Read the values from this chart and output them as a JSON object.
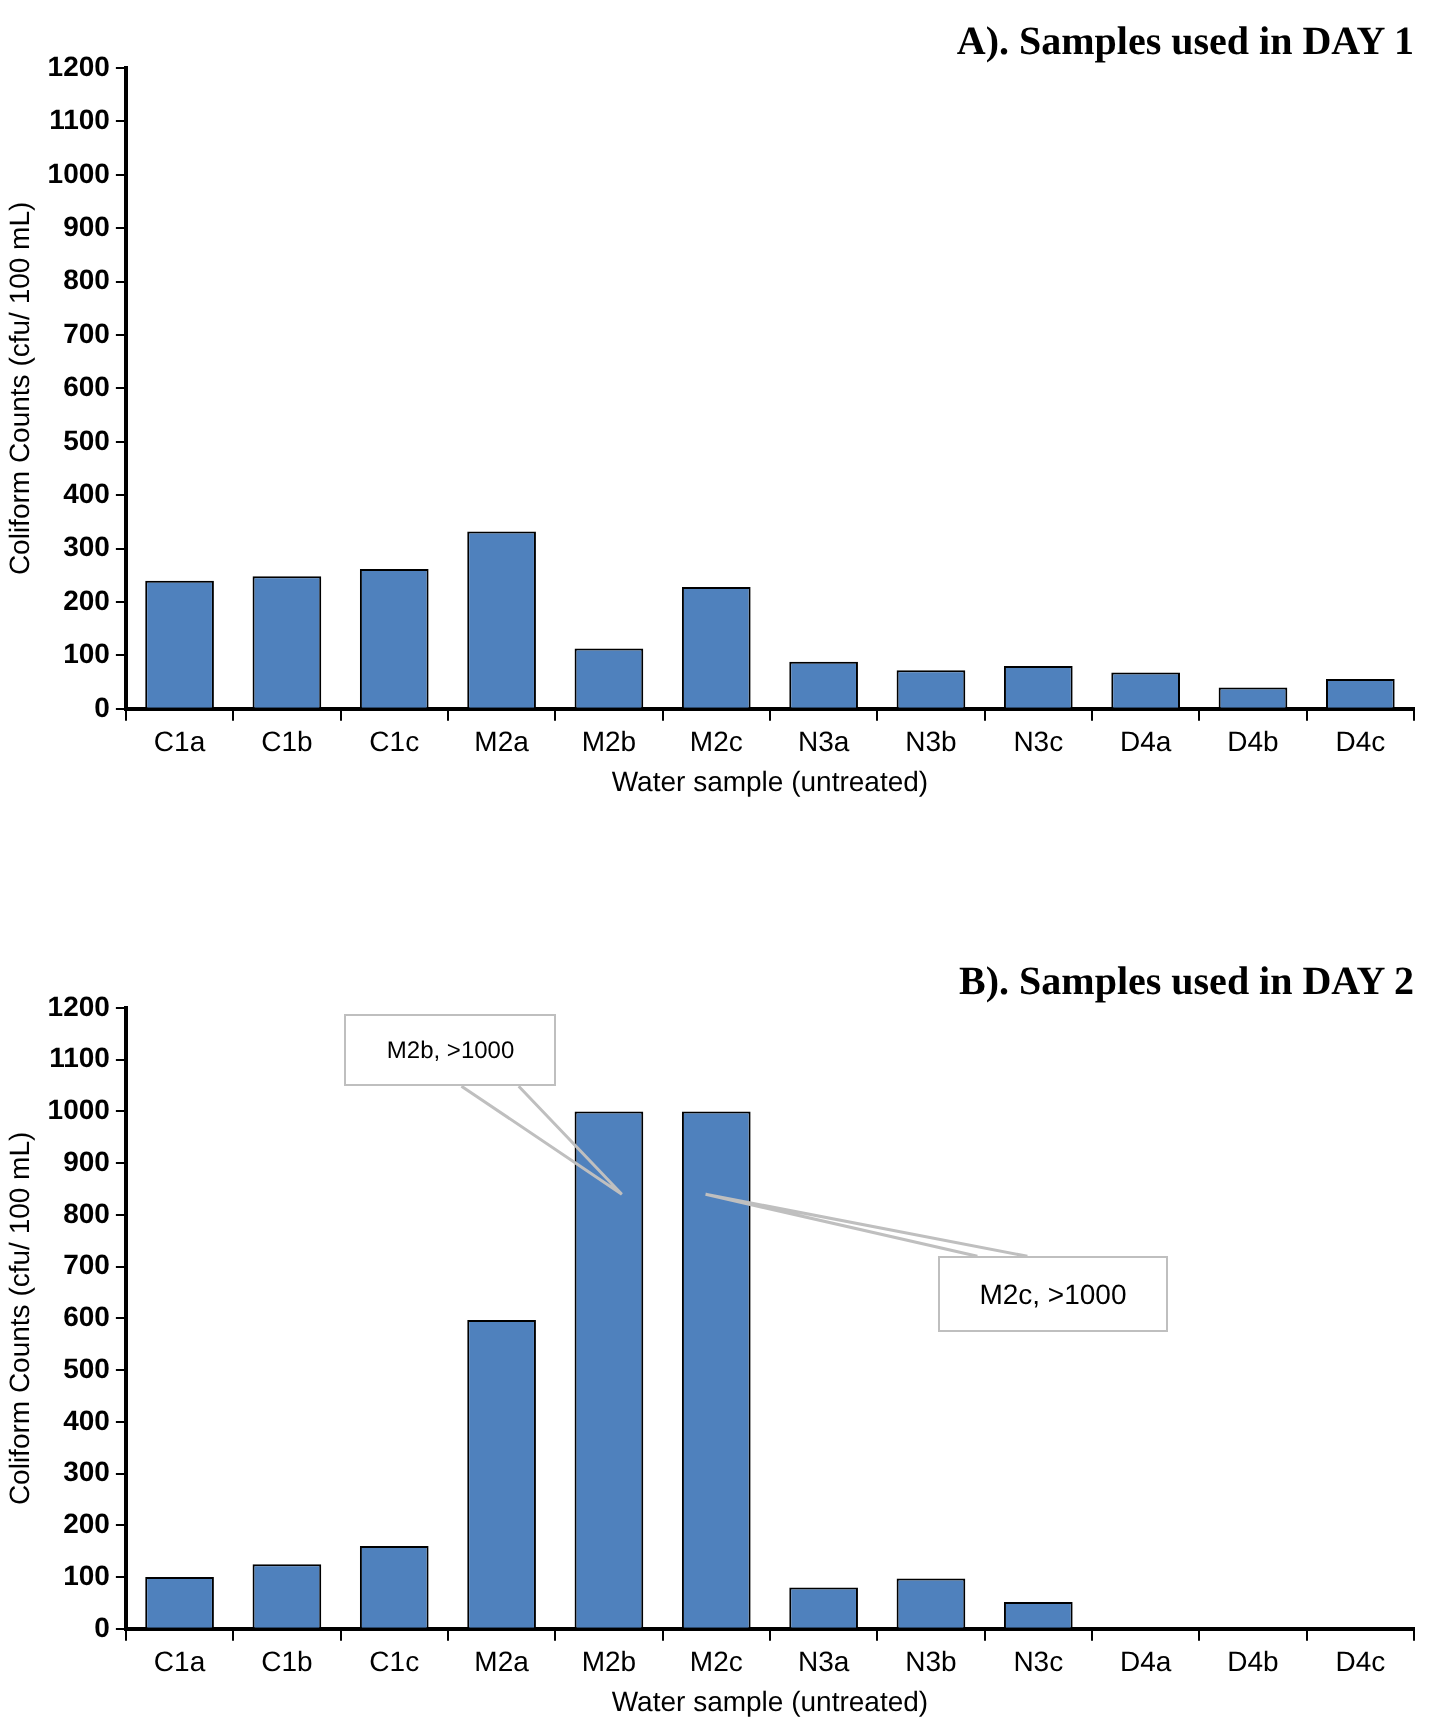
{
  "chart_data": [
    {
      "type": "bar",
      "title": "A). Samples used in DAY 1",
      "xlabel": "Water sample (untreated)",
      "ylabel": "Coliform Counts (cfu/ 100 mL)",
      "categories": [
        "C1a",
        "C1b",
        "C1c",
        "M2a",
        "M2b",
        "M2c",
        "N3a",
        "N3b",
        "N3c",
        "D4a",
        "D4b",
        "D4c"
      ],
      "values": [
        240,
        248,
        262,
        332,
        113,
        228,
        88,
        72,
        80,
        68,
        40,
        56
      ],
      "color": "#4f81bd",
      "ylim": [
        0,
        1200
      ],
      "yticks": [
        0,
        100,
        200,
        300,
        400,
        500,
        600,
        700,
        800,
        900,
        1000,
        1100,
        1200
      ],
      "grid": false,
      "legend": false
    },
    {
      "type": "bar",
      "title": "B). Samples used in DAY 2",
      "xlabel": "Water sample (untreated)",
      "ylabel": "Coliform Counts (cfu/ 100 mL)",
      "categories": [
        "C1a",
        "C1b",
        "C1c",
        "M2a",
        "M2b",
        "M2c",
        "N3a",
        "N3b",
        "N3c",
        "D4a",
        "D4b",
        "D4c"
      ],
      "values": [
        100,
        125,
        160,
        597,
        1000,
        1000,
        80,
        97,
        52,
        0,
        0,
        0
      ],
      "color": "#4f81bd",
      "ylim": [
        0,
        1200
      ],
      "yticks": [
        0,
        100,
        200,
        300,
        400,
        500,
        600,
        700,
        800,
        900,
        1000,
        1100,
        1200
      ],
      "grid": false,
      "legend": false,
      "annotations": [
        "M2b, >1000",
        "M2c, >1000"
      ]
    }
  ]
}
